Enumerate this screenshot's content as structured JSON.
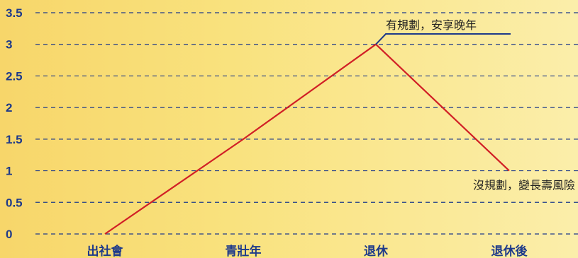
{
  "chart_data": {
    "type": "line",
    "title": "",
    "xlabel": "",
    "ylabel": "",
    "categories": [
      "出社會",
      "青壯年",
      "退休",
      "退休後"
    ],
    "ylim": [
      0,
      3.5
    ],
    "yticks": [
      "0",
      "0.5",
      "1",
      "1.5",
      "2",
      "2.5",
      "3",
      "3.5"
    ],
    "grid": true,
    "series": [
      {
        "values": [
          0,
          1.5,
          3,
          1
        ],
        "color": "#d11f26"
      }
    ],
    "annotations": [
      {
        "text": "有規劃，安享晚年",
        "point_index": 2,
        "color": "#1e3a8a"
      },
      {
        "text": "沒規劃，變長壽風險",
        "point_index": 3
      }
    ]
  },
  "colors": {
    "axis_text": "#1e3a8a",
    "grid": "#1e3a8a",
    "background_start": "#f7d66a",
    "background_end": "#fbeeaa"
  }
}
